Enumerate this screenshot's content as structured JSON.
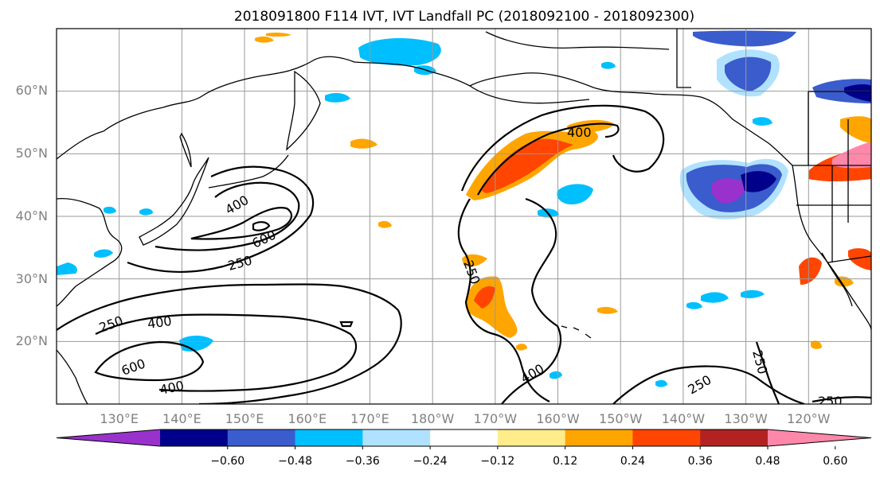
{
  "title": "2018091800 F114 IVT, IVT Landfall PC (2018092100 - 2018092300)",
  "map": {
    "lat_labels": [
      "60°N",
      "50°N",
      "40°N",
      "30°N",
      "20°N"
    ],
    "lon_labels": [
      "130°E",
      "140°E",
      "150°E",
      "160°E",
      "170°E",
      "180°W",
      "170°W",
      "160°W",
      "150°W",
      "140°W",
      "130°W",
      "120°W"
    ],
    "contour_labels": [
      "400",
      "400",
      "600",
      "250",
      "250",
      "250",
      "400",
      "600",
      "400",
      "400",
      "250",
      "250",
      "250"
    ]
  },
  "colorbar": {
    "colors": [
      "#9932cc",
      "#00008b",
      "#3a5ccc",
      "#00bfff",
      "#b0e2ff",
      "#ffffff",
      "#ffec8b",
      "#ffa500",
      "#ff4500",
      "#b22222",
      "#ff88aa"
    ],
    "tick_labels": [
      "-0.60",
      "-0.48",
      "-0.36",
      "-0.24",
      "-0.12",
      "0.12",
      "0.24",
      "0.36",
      "0.48",
      "0.60"
    ]
  },
  "chart_data": {
    "type": "heatmap",
    "title": "2018091800 F114 IVT, IVT Landfall PC (2018092100 - 2018092300)",
    "lat_range": [
      10,
      70
    ],
    "lon_range": [
      120,
      250
    ],
    "lat_ticks": [
      60,
      50,
      40,
      30,
      20
    ],
    "lon_ticks": [
      130,
      140,
      150,
      160,
      170,
      180,
      190,
      200,
      210,
      220,
      230,
      240
    ],
    "grid": true,
    "colorbar_levels": [
      -0.6,
      -0.48,
      -0.36,
      -0.24,
      -0.12,
      0.12,
      0.24,
      0.36,
      0.48,
      0.6
    ],
    "contour_levels": [
      250,
      400,
      600
    ]
  }
}
